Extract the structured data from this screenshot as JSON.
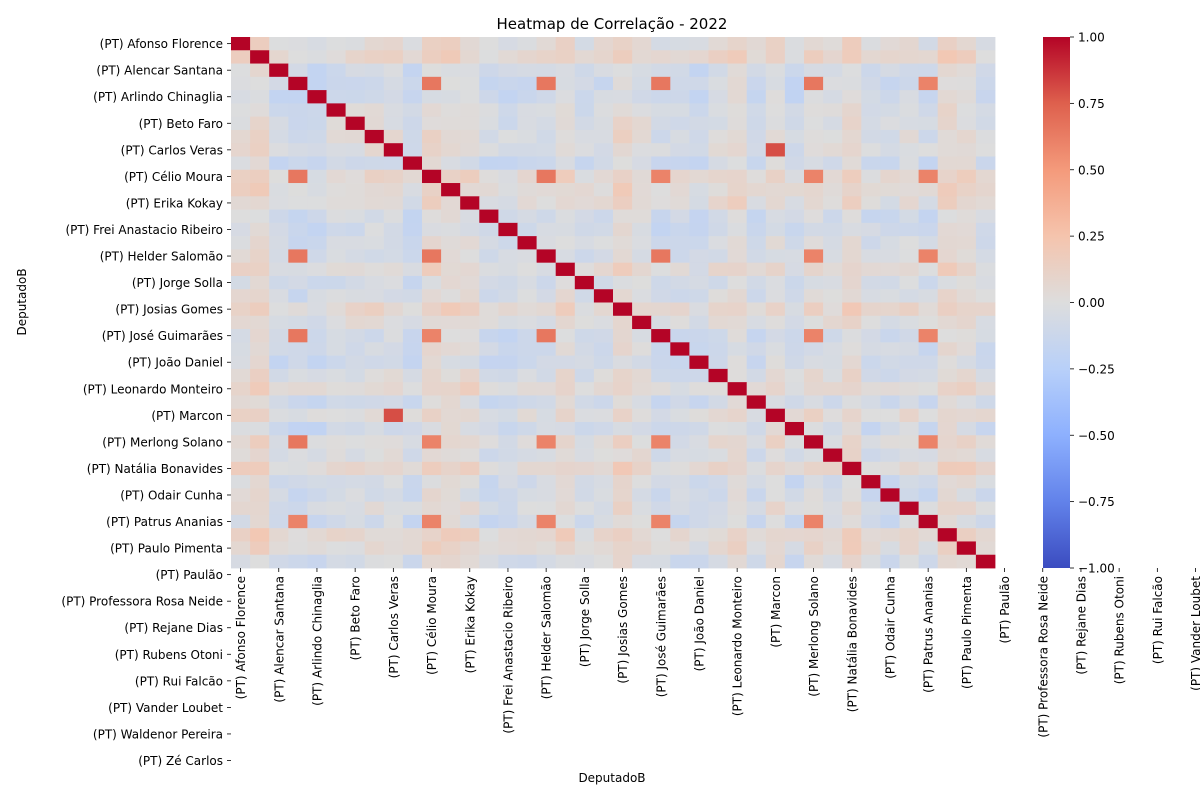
{
  "chart_data": {
    "type": "heatmap",
    "title": "Heatmap de Correlação - 2022",
    "xlabel": "DeputadoB",
    "ylabel": "DeputadoB",
    "n_rows": 40,
    "n_cols": 40,
    "labeled_every": 2,
    "tick_labels": [
      "(PT) Afonso Florence",
      "(PT) Alencar Santana",
      "(PT) Arlindo Chinaglia",
      "(PT) Beto Faro",
      "(PT) Carlos Veras",
      "(PT) Célio Moura",
      "(PT) Erika Kokay",
      "(PT) Frei Anastacio Ribeiro",
      "(PT) Helder Salomão",
      "(PT) Jorge Solla",
      "(PT) Josias Gomes",
      "(PT) José Guimarães",
      "(PT) João Daniel",
      "(PT) Leonardo Monteiro",
      "(PT) Marcon",
      "(PT) Merlong Solano",
      "(PT) Natália Bonavides",
      "(PT) Odair Cunha",
      "(PT) Patrus Ananias",
      "(PT) Paulo Pimenta",
      "(PT) Paulão",
      "(PT) Professora Rosa Neide",
      "(PT) Rejane Dias",
      "(PT) Rubens Otoni",
      "(PT) Rui Falcão",
      "(PT) Vander Loubet",
      "(PT) Waldenor Pereira",
      "(PT) Zé Carlos"
    ],
    "value_range": [
      -1.0,
      1.0
    ],
    "diagonal_value": 1.0,
    "strong_pairs": [
      {
        "i": 3,
        "j": 10,
        "value": 0.65
      },
      {
        "i": 3,
        "j": 16,
        "value": 0.65
      },
      {
        "i": 3,
        "j": 22,
        "value": 0.65
      },
      {
        "i": 3,
        "j": 30,
        "value": 0.65
      },
      {
        "i": 3,
        "j": 36,
        "value": 0.6
      },
      {
        "i": 10,
        "j": 16,
        "value": 0.65
      },
      {
        "i": 10,
        "j": 22,
        "value": 0.6
      },
      {
        "i": 10,
        "j": 30,
        "value": 0.6
      },
      {
        "i": 10,
        "j": 36,
        "value": 0.6
      },
      {
        "i": 16,
        "j": 22,
        "value": 0.65
      },
      {
        "i": 16,
        "j": 30,
        "value": 0.6
      },
      {
        "i": 16,
        "j": 36,
        "value": 0.6
      },
      {
        "i": 22,
        "j": 30,
        "value": 0.6
      },
      {
        "i": 22,
        "j": 36,
        "value": 0.6
      },
      {
        "i": 30,
        "j": 36,
        "value": 0.6
      },
      {
        "i": 8,
        "j": 28,
        "value": 0.8
      }
    ],
    "colorbar": {
      "colormap": "coolwarm",
      "ticks": [
        1.0,
        0.75,
        0.5,
        0.25,
        0.0,
        -0.25,
        -0.5,
        -0.75,
        -1.0
      ],
      "tick_labels": [
        "1.00",
        "0.75",
        "0.50",
        "0.25",
        "0.00",
        "−0.25",
        "−0.50",
        "−0.75",
        "−1.00"
      ]
    }
  }
}
